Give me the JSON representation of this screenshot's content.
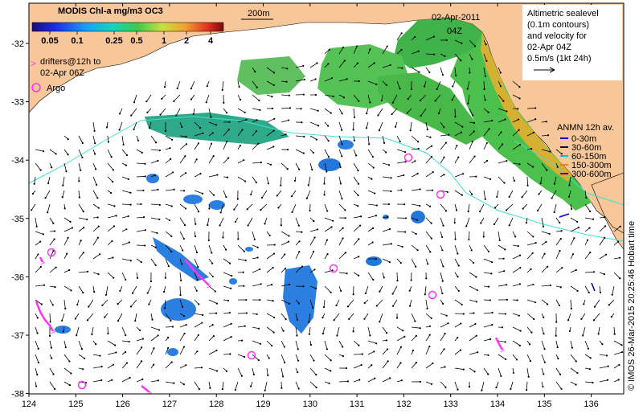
{
  "colorbar": {
    "title": "MODIS Chl-a mg/m3 OC3",
    "ticks": [
      "0.05",
      "0.1",
      "0.25",
      "0.5",
      "1",
      "2",
      "4"
    ]
  },
  "scale_bar_label": "200m",
  "date": "02-Apr-2011",
  "time": "04Z",
  "legend_drifters": [
    "drifters@12h to",
    "02-Apr 06Z"
  ],
  "legend_argo": "Argo",
  "altimetry_note": [
    "Altimetric sealevel",
    "(0.1m contours)",
    "and velocity for",
    "02-Apr 04Z",
    "0.5m/s (1kt 24h)"
  ],
  "anmn": {
    "title": "ANMN 12h av.",
    "items": [
      {
        "label": "0-30m",
        "color": "#0000cc"
      },
      {
        "label": "30-60m",
        "color": "#000080"
      },
      {
        "label": "60-150m",
        "color": "#00bcd4"
      },
      {
        "label": "150-300m",
        "color": "#e67e22"
      },
      {
        "label": "300-600m",
        "color": "#8b0000"
      }
    ]
  },
  "credit": "© IMOS 26-Mar-2015 20:25:46 Hobart time",
  "x_ticks": [
    "124",
    "125",
    "126",
    "127",
    "128",
    "129",
    "130",
    "131",
    "132",
    "133",
    "134",
    "135",
    "136"
  ],
  "y_ticks": [
    "-32",
    "-33",
    "-34",
    "-35",
    "-36",
    "-37",
    "-38"
  ],
  "colors": {
    "land": "#f7c79a",
    "ocean": "#ffffff",
    "drifter": "#ff33ff",
    "contour": "#40e0d0"
  }
}
